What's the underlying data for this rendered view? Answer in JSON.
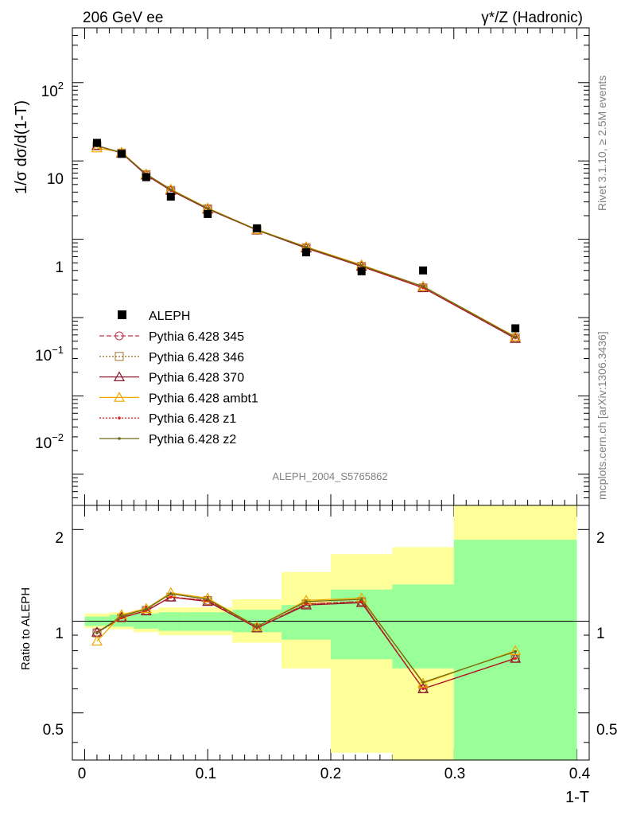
{
  "header": {
    "energy_label": "206 GeV ee",
    "process_label": "γ*/Z (Hadronic)",
    "side_top": "Rivet 3.1.10, ≥ 2.5M events",
    "side_bottom": "mcplots.cern.ch [arXiv:1306.3436]",
    "analysis_label": "ALEPH_2004_S5765862"
  },
  "axes": {
    "x_label": "1-T",
    "y_label_main": "1/σ  dσ/d(1-T)",
    "y_label_ratio": "Ratio to ALEPH",
    "x_ticks": [
      "0",
      "0.1",
      "0.2",
      "0.3",
      "0.4"
    ],
    "main_ticks": [
      {
        "base": "10",
        "exp": "2"
      },
      {
        "base": "10",
        "exp": ""
      },
      {
        "base": "1",
        "exp": ""
      },
      {
        "base": "10",
        "exp": "−1"
      },
      {
        "base": "10",
        "exp": "−2"
      }
    ],
    "ratio_ticks": [
      "2",
      "1",
      "0.5"
    ]
  },
  "chart_data": [
    {
      "type": "scatter",
      "panel": "main",
      "log_y": true,
      "xlim": [
        -0.01,
        0.41
      ],
      "ylim": [
        0.0004,
        500
      ],
      "legend_position": "lower-left",
      "bin_edges": [
        0.0,
        0.02,
        0.04,
        0.06,
        0.08,
        0.12,
        0.16,
        0.2,
        0.25,
        0.3,
        0.4
      ],
      "x": [
        0.01,
        0.03,
        0.05,
        0.07,
        0.1,
        0.14,
        0.18,
        0.225,
        0.275,
        0.35
      ],
      "data": {
        "name": "ALEPH",
        "color": "#000000",
        "values": [
          17.0,
          12.3,
          6.2,
          3.5,
          2.1,
          1.38,
          0.68,
          0.39,
          0.4,
          0.073
        ]
      },
      "series": [
        {
          "name": "Pythia 6.428 345",
          "color": "#c0304a",
          "line": "dashed",
          "marker": "circle",
          "values": [
            15.7,
            12.6,
            6.7,
            4.2,
            2.45,
            1.31,
            0.78,
            0.45,
            0.24,
            0.055
          ]
        },
        {
          "name": "Pythia 6.428 346",
          "color": "#a07830",
          "line": "dotted",
          "marker": "square",
          "values": [
            15.6,
            12.6,
            6.7,
            4.2,
            2.45,
            1.31,
            0.78,
            0.45,
            0.24,
            0.055
          ]
        },
        {
          "name": "Pythia 6.428 370",
          "color": "#8b1a2e",
          "line": "solid",
          "marker": "triangle",
          "values": [
            15.7,
            12.6,
            6.6,
            4.2,
            2.42,
            1.31,
            0.77,
            0.45,
            0.24,
            0.054
          ]
        },
        {
          "name": "Pythia 6.428 ambt1",
          "color": "#f0a800",
          "line": "solid",
          "marker": "triangle",
          "values": [
            14.6,
            12.9,
            6.8,
            4.35,
            2.5,
            1.33,
            0.8,
            0.47,
            0.25,
            0.057
          ]
        },
        {
          "name": "Pythia 6.428 z1",
          "color": "#e02020",
          "line": "dotted",
          "marker": "dot",
          "values": [
            15.7,
            12.6,
            6.7,
            4.2,
            2.45,
            1.31,
            0.78,
            0.45,
            0.24,
            0.055
          ]
        },
        {
          "name": "Pythia 6.428 z2",
          "color": "#6b6b10",
          "line": "solid",
          "marker": "dot",
          "values": [
            15.6,
            12.8,
            6.8,
            4.3,
            2.47,
            1.32,
            0.79,
            0.46,
            0.25,
            0.056
          ]
        }
      ]
    },
    {
      "type": "line",
      "panel": "ratio",
      "log_y": true,
      "xlim": [
        -0.01,
        0.41
      ],
      "ylim": [
        0.35,
        2.4
      ],
      "reference_line": 1,
      "bands": {
        "inner_color": "#99ff99",
        "outer_color": "#ffff99",
        "inner": [
          [
            0.965,
            1.035
          ],
          [
            0.96,
            1.05
          ],
          [
            0.945,
            1.06
          ],
          [
            0.93,
            1.07
          ],
          [
            0.93,
            1.07
          ],
          [
            0.92,
            1.09
          ],
          [
            0.87,
            1.13
          ],
          [
            0.75,
            1.27
          ],
          [
            0.7,
            1.32
          ],
          [
            0.35,
            1.85
          ]
        ],
        "outer": [
          [
            0.95,
            1.06
          ],
          [
            0.94,
            1.07
          ],
          [
            0.92,
            1.09
          ],
          [
            0.9,
            1.11
          ],
          [
            0.9,
            1.11
          ],
          [
            0.85,
            1.18
          ],
          [
            0.7,
            1.45
          ],
          [
            0.37,
            1.66
          ],
          [
            0.35,
            1.75
          ],
          [
            0.35,
            2.4
          ]
        ]
      },
      "series": [
        {
          "name": "Pythia 6.428 345",
          "values": [
            0.92,
            1.025,
            1.085,
            1.2,
            1.17,
            0.95,
            1.14,
            1.16,
            0.6,
            0.755
          ]
        },
        {
          "name": "Pythia 6.428 346",
          "values": [
            0.915,
            1.025,
            1.085,
            1.2,
            1.17,
            0.95,
            1.14,
            1.16,
            0.6,
            0.755
          ]
        },
        {
          "name": "Pythia 6.428 370",
          "values": [
            0.92,
            1.03,
            1.08,
            1.2,
            1.16,
            0.95,
            1.13,
            1.15,
            0.6,
            0.755
          ]
        },
        {
          "name": "Pythia 6.428 ambt1",
          "values": [
            0.86,
            1.05,
            1.1,
            1.24,
            1.19,
            0.96,
            1.17,
            1.19,
            0.625,
            0.8
          ]
        },
        {
          "name": "Pythia 6.428 z1",
          "values": [
            0.92,
            1.025,
            1.085,
            1.2,
            1.17,
            0.95,
            1.14,
            1.16,
            0.6,
            0.755
          ]
        },
        {
          "name": "Pythia 6.428 z2",
          "values": [
            0.915,
            1.04,
            1.095,
            1.23,
            1.18,
            0.96,
            1.16,
            1.18,
            0.63,
            0.795
          ]
        }
      ]
    }
  ]
}
